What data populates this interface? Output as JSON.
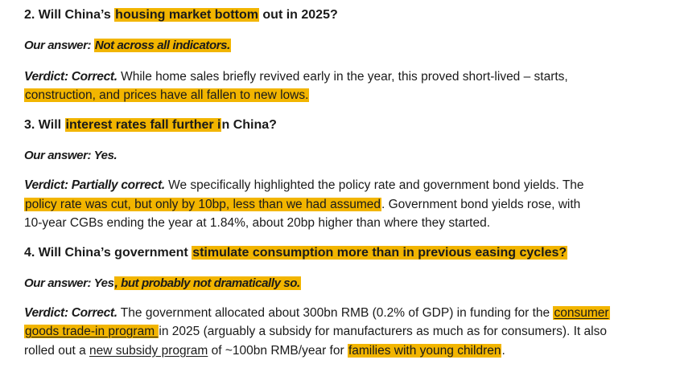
{
  "colors": {
    "highlight": "#f2b500",
    "text": "#1a1a1a"
  },
  "q2": {
    "heading_pre": "2. Will China’s ",
    "heading_hl": "housing market bottom",
    "heading_post": " out in 2025?",
    "answer_label": "Our answer: ",
    "answer_hl": "Not across all indicators.",
    "verdict_label": "Verdict: Correct.",
    "verdict_text1": " While home sales briefly revived early in the year, this proved short-lived – starts,",
    "verdict_hl2": "construction, and prices have all fallen to new lows."
  },
  "q3": {
    "heading_pre": "3. Will ",
    "heading_hl": "interest rates fall further i",
    "heading_post": "n China?",
    "answer": "Our answer: Yes.",
    "verdict_label": "Verdict: Partially correct.",
    "verdict_text1": " We specifically highlighted the policy rate and government bond yields. The",
    "verdict_hl2": "policy rate was cut, but only by 10bp, less than we had assumed",
    "verdict_text2": ". Government bond yields rose, with",
    "verdict_text3": "10-year CGBs ending the year at 1.84%, about 20bp higher than where they started."
  },
  "q4": {
    "heading_pre": "4. Will China’s government ",
    "heading_hl": "stimulate consumption more than in previous easing cycles?",
    "answer_label": "Our answer: Yes",
    "answer_hl": ", but probably not dramatically so.",
    "verdict_label": "Verdict: Correct.",
    "verdict_text1": " The government allocated about 300bn RMB (0.2% of GDP) in funding for the ",
    "verdict_link1a": "consumer",
    "verdict_link1b": "goods trade-in program ",
    "verdict_text2": "in 2025 (arguably a subsidy for manufacturers as much as for consumers). It also",
    "verdict_text3": "rolled out a ",
    "verdict_link2": "new subsidy program",
    "verdict_text4": " of ~100bn RMB/year for ",
    "verdict_hl3": "families with young children",
    "verdict_text5": "."
  }
}
